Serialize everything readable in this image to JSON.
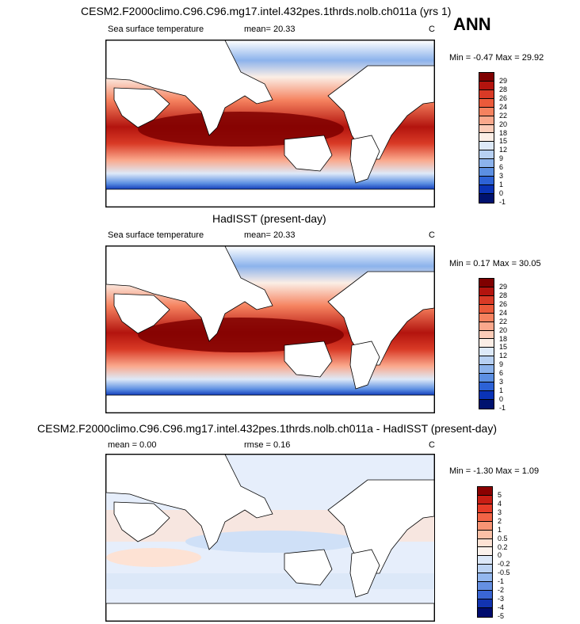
{
  "panels": [
    {
      "title": "CESM2.F2000climo.C96.C96.mg17.intel.432pes.1thrds.nolb.ch011a (yrs 1)",
      "left_label": "Sea surface temperature",
      "mid_label": "mean=  20.33",
      "units": "C",
      "minmax": "Min =  -0.47 Max =  29.92",
      "levels": [
        "29",
        "28",
        "26",
        "24",
        "22",
        "20",
        "18",
        "15",
        "12",
        "9",
        "6",
        "3",
        "1",
        "0",
        "-1"
      ],
      "colors": [
        "#7f0000",
        "#b3140e",
        "#d93a26",
        "#eb5a3a",
        "#f5825f",
        "#faa88c",
        "#fcccb8",
        "#fbeee6",
        "#dde9f8",
        "#b7d0f2",
        "#8cb3ec",
        "#5c8fe2",
        "#2d62d6",
        "#0a33b6",
        "#00126f"
      ]
    },
    {
      "title": "HadISST (present-day)",
      "left_label": "Sea surface temperature",
      "mid_label": "mean=  20.33",
      "units": "C",
      "minmax": "Min =  0.17 Max =  30.05",
      "levels": [
        "29",
        "28",
        "26",
        "24",
        "22",
        "20",
        "18",
        "15",
        "12",
        "9",
        "6",
        "3",
        "1",
        "0",
        "-1"
      ],
      "colors": [
        "#7f0000",
        "#b3140e",
        "#d93a26",
        "#eb5a3a",
        "#f5825f",
        "#faa88c",
        "#fcccb8",
        "#fbeee6",
        "#dde9f8",
        "#b7d0f2",
        "#8cb3ec",
        "#5c8fe2",
        "#2d62d6",
        "#0a33b6",
        "#00126f"
      ]
    },
    {
      "title": "CESM2.F2000climo.C96.C96.mg17.intel.432pes.1thrds.nolb.ch011a - HadISST (present-day)",
      "left_label": "mean =   0.00",
      "mid_label": "rmse =   0.16",
      "units": "C",
      "minmax": "Min =  -1.30 Max =   1.09",
      "levels": [
        "5",
        "4",
        "3",
        "2",
        "1",
        "0.5",
        "0.2",
        "0",
        "-0.2",
        "-0.5",
        "-1",
        "-2",
        "-3",
        "-4",
        "-5"
      ],
      "colors": [
        "#8b0000",
        "#c81e14",
        "#e63c28",
        "#f26446",
        "#f89474",
        "#fbc0a6",
        "#fde2d4",
        "#fbf2ec",
        "#dce8f8",
        "#bcd3f3",
        "#93b7ee",
        "#6590e2",
        "#3a66d4",
        "#1233b0",
        "#000b6e"
      ]
    }
  ],
  "season": "ANN",
  "colors": {
    "land": "#ffffff",
    "ocean_warm": "#b3140e",
    "ocean_cold": "#2d62d6",
    "diff_pos": "#fcd8c6",
    "diff_neg": "#cfe0f7"
  }
}
